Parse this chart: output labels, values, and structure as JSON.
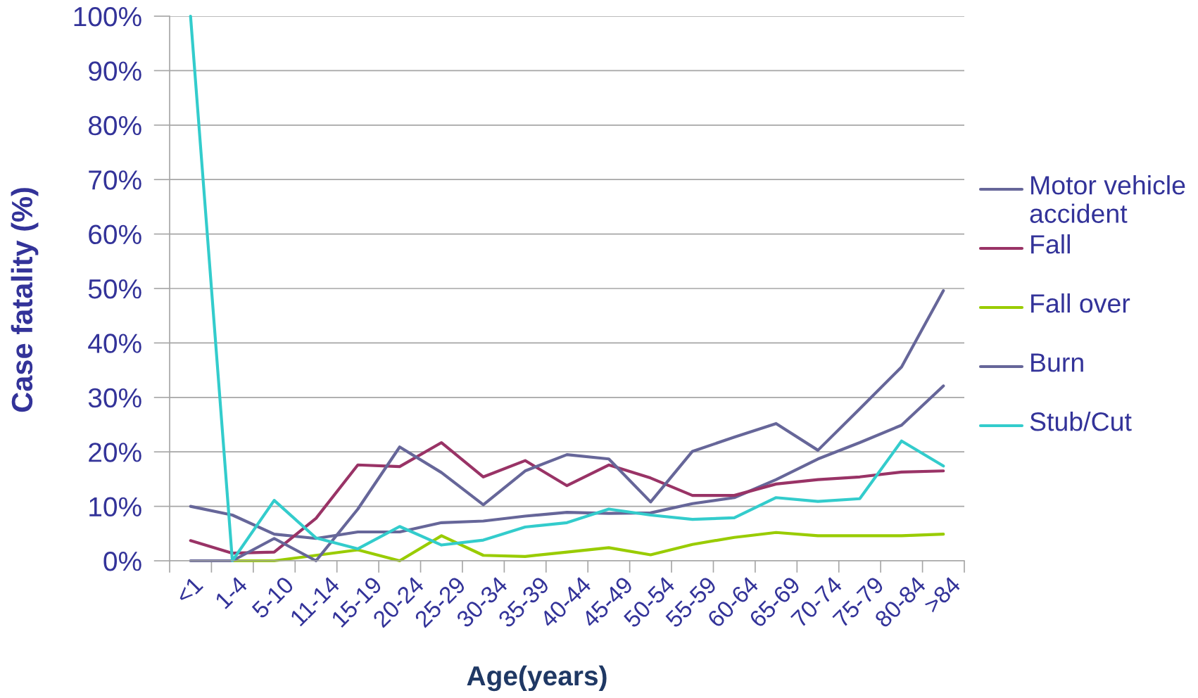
{
  "chart_data": {
    "type": "line",
    "xlabel": "Age(years)",
    "ylabel": "Case fatality (%)",
    "categories": [
      "<1",
      "1-4",
      "5-10",
      "11-14",
      "15-19",
      "20-24",
      "25-29",
      "30-34",
      "35-39",
      "40-44",
      "45-49",
      "50-54",
      "55-59",
      "60-64",
      "65-69",
      "70-74",
      "75-79",
      "80-84",
      ">84"
    ],
    "series": [
      {
        "name": "Motor vehicle accident",
        "color": "#666699",
        "values": [
          10.0,
          8.4,
          4.9,
          4.1,
          5.3,
          5.3,
          7.0,
          7.3,
          8.2,
          8.9,
          8.7,
          8.8,
          10.5,
          11.6,
          14.9,
          18.7,
          21.7,
          24.9,
          32.1
        ]
      },
      {
        "name": "Fall",
        "color": "#993366",
        "values": [
          3.7,
          1.4,
          1.6,
          7.8,
          17.6,
          17.3,
          21.7,
          15.4,
          18.4,
          13.8,
          17.6,
          15.2,
          12.0,
          12.0,
          14.1,
          14.9,
          15.4,
          16.3,
          16.5
        ]
      },
      {
        "name": "Fall over",
        "color": "#99cc00",
        "values": [
          null,
          0,
          0,
          1.0,
          2.0,
          0,
          4.6,
          1.0,
          0.8,
          1.6,
          2.4,
          1.1,
          3.0,
          4.3,
          5.2,
          4.6,
          4.6,
          4.6,
          4.9
        ]
      },
      {
        "name": "Burn",
        "color": "#666699",
        "values": [
          0,
          0,
          4.1,
          0,
          9.5,
          20.9,
          16.2,
          10.3,
          16.5,
          19.5,
          18.7,
          10.8,
          20.1,
          22.7,
          25.2,
          20.3,
          27.9,
          35.6,
          49.6
        ]
      },
      {
        "name": "Stub/Cut",
        "color": "#33cccc",
        "values": [
          100,
          0,
          11.1,
          4.2,
          2.2,
          6.3,
          2.9,
          3.8,
          6.2,
          7.0,
          9.5,
          8.4,
          7.6,
          7.9,
          11.6,
          10.9,
          11.4,
          22.0,
          17.4
        ]
      }
    ],
    "ylim": [
      0,
      100
    ],
    "yticks": [
      {
        "value": 0,
        "label": "0%"
      },
      {
        "value": 10,
        "label": "10%"
      },
      {
        "value": 20,
        "label": "20%"
      },
      {
        "value": 30,
        "label": "30%"
      },
      {
        "value": 40,
        "label": "40%"
      },
      {
        "value": 50,
        "label": "50%"
      },
      {
        "value": 60,
        "label": "60%"
      },
      {
        "value": 70,
        "label": "70%"
      },
      {
        "value": 80,
        "label": "80%"
      },
      {
        "value": 90,
        "label": "90%"
      },
      {
        "value": 100,
        "label": "100%"
      }
    ],
    "grid": "y",
    "legend": "right"
  }
}
